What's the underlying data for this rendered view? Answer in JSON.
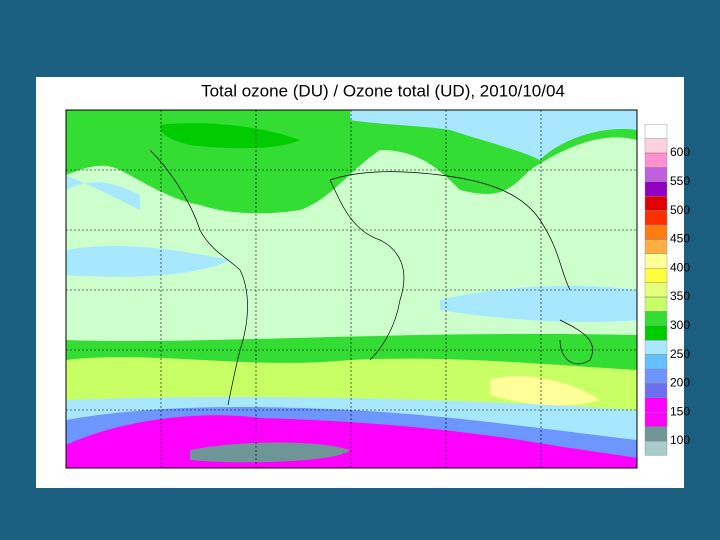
{
  "title": "Total ozone (DU) / Ozone total (UD), 2010/10/04",
  "colorbar": {
    "ticks": [
      100,
      150,
      200,
      250,
      300,
      350,
      400,
      450,
      500,
      550,
      600
    ],
    "colors": [
      "#a6cccc",
      "#6f9696",
      "#ff00ff",
      "#ff00ff",
      "#6e6ef0",
      "#6e96ff",
      "#64c0ff",
      "#a8e8ff",
      "#00cc00",
      "#33dd33",
      "#c8ff64",
      "#e6ff78",
      "#ffff40",
      "#ffff99",
      "#ffb040",
      "#ff7a10",
      "#ff3000",
      "#e00000",
      "#9000c0",
      "#c060e0",
      "#ff90d0",
      "#ffd0e0",
      "#ffffff"
    ]
  }
}
